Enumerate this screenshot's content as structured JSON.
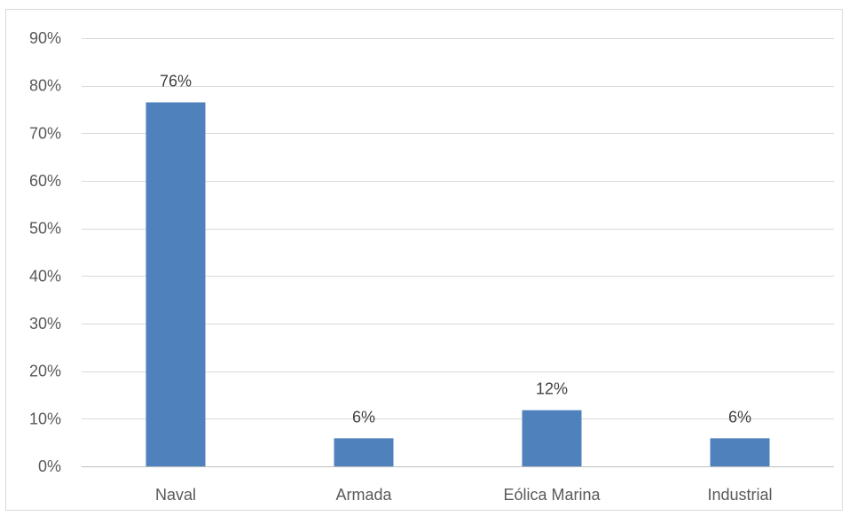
{
  "chart_data": {
    "type": "bar",
    "title": "",
    "xlabel": "",
    "ylabel": "",
    "categories": [
      "Naval",
      "Armada",
      "Eólica Marina",
      "Industrial"
    ],
    "values": [
      76.5,
      5.9,
      11.8,
      5.9
    ],
    "data_labels": [
      "76%",
      "6%",
      "12%",
      "6%"
    ],
    "ylim": [
      0,
      90
    ],
    "yticks": [
      0,
      10,
      20,
      30,
      40,
      50,
      60,
      70,
      80,
      90
    ],
    "ytick_labels": [
      "0%",
      "10%",
      "20%",
      "30%",
      "40%",
      "50%",
      "60%",
      "70%",
      "80%",
      "90%"
    ],
    "grid": true,
    "legend": "none",
    "bar_color": "#4f81bd"
  }
}
